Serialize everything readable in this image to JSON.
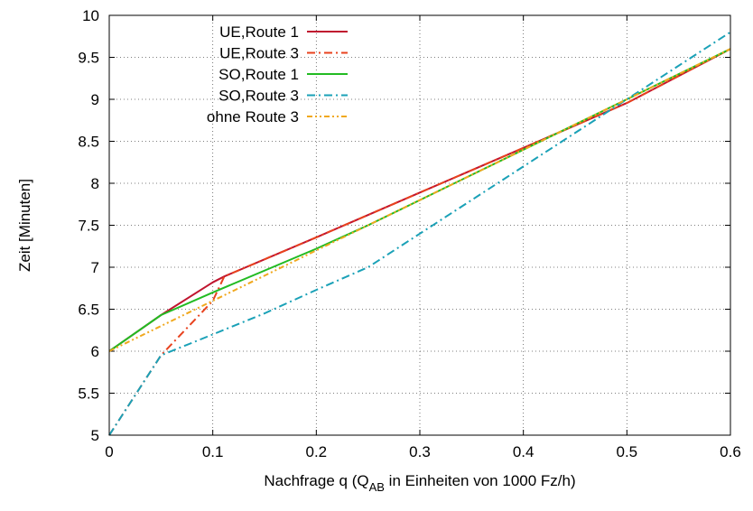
{
  "chart_data": {
    "type": "line",
    "title": "",
    "xlabel": {
      "prefix": "Nachfrage q (Q",
      "subscript": "AB",
      "suffix": " in Einheiten von 1000 Fz/h)"
    },
    "ylabel": "Zeit [Minuten]",
    "xlim": [
      0,
      0.6
    ],
    "ylim": [
      5,
      10
    ],
    "xticks": [
      0,
      0.1,
      0.2,
      0.3,
      0.4,
      0.5,
      0.6
    ],
    "xtick_labels": [
      "0",
      "0.1",
      "0.2",
      "0.3",
      "0.4",
      "0.5",
      "0.6"
    ],
    "yticks": [
      5,
      5.5,
      6,
      6.5,
      7,
      7.5,
      8,
      8.5,
      9,
      9.5,
      10
    ],
    "ytick_labels": [
      "5",
      "5.5",
      "6",
      "6.5",
      "7",
      "7.5",
      "8",
      "8.5",
      "9",
      "9.5",
      "10"
    ],
    "grid": true,
    "legend_position": "top-left",
    "series": [
      {
        "name": "UE,Route 1",
        "color": "#c0152f",
        "dash": "solid",
        "x": [
          0,
          0.05,
          0.1,
          0.1111,
          0.2,
          0.3,
          0.4,
          0.5,
          0.6
        ],
        "y": [
          6.0,
          6.43,
          6.82,
          6.89,
          7.356,
          7.889,
          8.422,
          8.956,
          9.6
        ]
      },
      {
        "name": "UE,Route 3",
        "color": "#e8421e",
        "dash": "dashdot",
        "x": [
          0,
          0.05,
          0.1,
          0.1111,
          0.2,
          0.3,
          0.4,
          0.5,
          0.6
        ],
        "y": [
          5.0,
          5.95,
          6.6,
          6.89,
          7.356,
          7.889,
          8.422,
          8.956,
          9.6
        ]
      },
      {
        "name": "SO,Route 1",
        "color": "#22bb22",
        "dash": "solid",
        "x": [
          0,
          0.05,
          0.1,
          0.2,
          0.25,
          0.3,
          0.4,
          0.5,
          0.6
        ],
        "y": [
          6.0,
          6.43,
          6.7,
          7.22,
          7.5,
          7.8,
          8.4,
          9.0,
          9.6
        ]
      },
      {
        "name": "SO,Route 3",
        "color": "#1aa1b7",
        "dash": "dashdot",
        "x": [
          0,
          0.05,
          0.1,
          0.15,
          0.2,
          0.25,
          0.3,
          0.4,
          0.5,
          0.6
        ],
        "y": [
          5.0,
          5.95,
          6.2,
          6.45,
          6.73,
          7.0,
          7.4,
          8.2,
          9.0,
          9.8
        ]
      },
      {
        "name": "ohne Route 3",
        "color": "#f0a81e",
        "dash": "dashdotdot",
        "x": [
          0,
          0.1,
          0.2,
          0.3,
          0.4,
          0.5,
          0.6
        ],
        "y": [
          6.0,
          6.6,
          7.2,
          7.8,
          8.4,
          9.0,
          9.6
        ]
      }
    ]
  }
}
